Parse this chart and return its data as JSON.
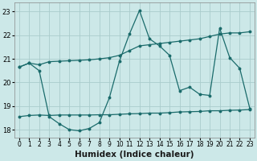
{
  "xlabel": "Humidex (Indice chaleur)",
  "bg_color": "#cce8e8",
  "grid_color": "#aacccc",
  "line_color": "#1a6b6b",
  "line1_y": [
    20.65,
    20.82,
    20.75,
    20.88,
    20.9,
    20.92,
    20.94,
    20.96,
    21.0,
    21.05,
    21.15,
    21.35,
    21.55,
    21.6,
    21.65,
    21.7,
    21.75,
    21.8,
    21.85,
    21.95,
    22.05,
    22.1,
    22.1,
    22.15
  ],
  "line2_y": [
    20.65,
    20.82,
    20.5,
    18.55,
    18.25,
    18.0,
    17.95,
    18.05,
    18.3,
    19.35,
    20.9,
    22.05,
    23.05,
    21.85,
    21.55,
    21.15,
    19.65,
    19.8,
    19.5,
    19.45,
    22.3,
    21.05,
    20.6,
    18.9
  ],
  "line3_y": [
    18.55,
    18.6,
    18.62,
    18.6,
    18.62,
    18.62,
    18.62,
    18.62,
    18.63,
    18.63,
    18.65,
    18.67,
    18.68,
    18.7,
    18.7,
    18.72,
    18.75,
    18.76,
    18.77,
    18.8,
    18.8,
    18.82,
    18.83,
    18.85
  ],
  "ylim": [
    17.65,
    23.4
  ],
  "xlim": [
    -0.5,
    23.5
  ],
  "yticks": [
    18,
    19,
    20,
    21,
    22,
    23
  ],
  "xticks": [
    0,
    1,
    2,
    3,
    4,
    5,
    6,
    7,
    8,
    9,
    10,
    11,
    12,
    13,
    14,
    15,
    16,
    17,
    18,
    19,
    20,
    21,
    22,
    23
  ],
  "tick_fontsize": 5.5,
  "xlabel_fontsize": 7.5,
  "marker_size": 1.8,
  "line_width": 0.9
}
